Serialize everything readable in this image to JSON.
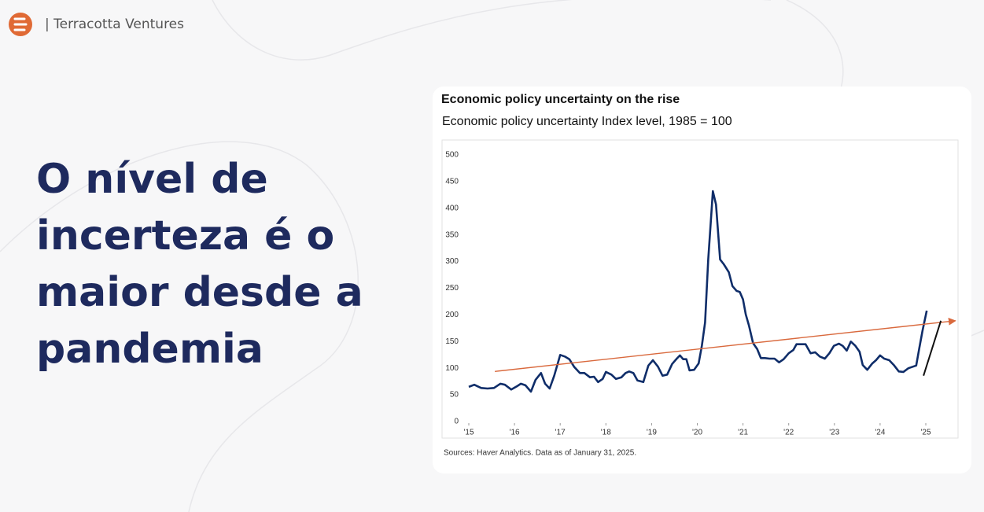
{
  "brand": "| Terracotta Ventures",
  "headline": [
    "O nível de",
    "incerteza é o",
    "maior desde a",
    "pandemia"
  ],
  "chart_data": {
    "type": "line",
    "title": "Economic policy uncertainty on the rise",
    "subtitle": "Economic policy uncertainty Index level, 1985 = 100",
    "source": "Sources: Haver Analytics. Data as of January 31, 2025.",
    "x": [
      2015.0,
      2015.12,
      2015.27,
      2015.41,
      2015.55,
      2015.69,
      2015.79,
      2015.93,
      2016.05,
      2016.14,
      2016.24,
      2016.36,
      2016.46,
      2016.58,
      2016.67,
      2016.77,
      2016.87,
      2017.0,
      2017.1,
      2017.2,
      2017.31,
      2017.43,
      2017.53,
      2017.65,
      2017.74,
      2017.83,
      2017.93,
      2018.0,
      2018.12,
      2018.22,
      2018.34,
      2018.43,
      2018.51,
      2018.6,
      2018.69,
      2018.82,
      2018.93,
      2019.03,
      2019.14,
      2019.24,
      2019.34,
      2019.45,
      2019.55,
      2019.62,
      2019.69,
      2019.76,
      2019.83,
      2019.93,
      2020.03,
      2020.1,
      2020.17,
      2020.24,
      2020.34,
      2020.41,
      2020.5,
      2020.58,
      2020.69,
      2020.77,
      2020.86,
      2020.93,
      2021.0,
      2021.06,
      2021.13,
      2021.22,
      2021.31,
      2021.39,
      2021.48,
      2021.58,
      2021.69,
      2021.79,
      2021.89,
      2022.0,
      2022.1,
      2022.17,
      2022.27,
      2022.37,
      2022.48,
      2022.58,
      2022.68,
      2022.79,
      2022.89,
      2022.99,
      2023.1,
      2023.18,
      2023.27,
      2023.36,
      2023.46,
      2023.55,
      2023.62,
      2023.72,
      2023.83,
      2023.91,
      2024.0,
      2024.09,
      2024.2,
      2024.3,
      2024.41,
      2024.51,
      2024.62,
      2024.72,
      2024.79,
      2024.86,
      2024.93,
      2025.02
    ],
    "series": [
      {
        "color": "#0f2d69",
        "values": [
          65,
          69,
          63,
          62,
          63,
          71,
          69,
          60,
          66,
          71,
          68,
          56,
          78,
          91,
          71,
          62,
          86,
          125,
          122,
          117,
          102,
          91,
          91,
          83,
          84,
          74,
          80,
          93,
          88,
          80,
          83,
          91,
          94,
          91,
          77,
          74,
          105,
          115,
          103,
          86,
          88,
          108,
          118,
          124,
          117,
          117,
          96,
          97,
          109,
          142,
          186,
          304,
          432,
          407,
          304,
          295,
          280,
          254,
          245,
          243,
          229,
          201,
          180,
          147,
          136,
          119,
          119,
          118,
          118,
          111,
          117,
          128,
          134,
          145,
          145,
          145,
          128,
          130,
          122,
          118,
          128,
          142,
          146,
          142,
          133,
          150,
          142,
          131,
          106,
          97,
          109,
          115,
          124,
          118,
          115,
          106,
          94,
          93,
          100,
          103,
          105,
          139,
          171,
          208
        ]
      }
    ],
    "annotations": [
      {
        "color": "#d9693d",
        "arrow": true,
        "x": [
          2015.57,
          2025.65
        ],
        "y": [
          94,
          189
        ]
      },
      {
        "color": "#111111",
        "arrow": false,
        "x": [
          2024.95,
          2025.33
        ],
        "y": [
          86,
          189
        ]
      }
    ],
    "xlim": [
      2015,
      2025
    ],
    "ylim": [
      0,
      500
    ],
    "xticks": [
      {
        "value": 2015,
        "label": "'15"
      },
      {
        "value": 2016,
        "label": "'16"
      },
      {
        "value": 2017,
        "label": "'17"
      },
      {
        "value": 2018,
        "label": "'18"
      },
      {
        "value": 2019,
        "label": "'19"
      },
      {
        "value": 2020,
        "label": "'20"
      },
      {
        "value": 2021,
        "label": "'21"
      },
      {
        "value": 2022,
        "label": "'22"
      },
      {
        "value": 2023,
        "label": "'23"
      },
      {
        "value": 2024,
        "label": "'24"
      },
      {
        "value": 2025,
        "label": "'25"
      }
    ],
    "yticks": [
      0,
      50,
      100,
      150,
      200,
      250,
      300,
      350,
      400,
      450,
      500
    ],
    "grid": false
  }
}
